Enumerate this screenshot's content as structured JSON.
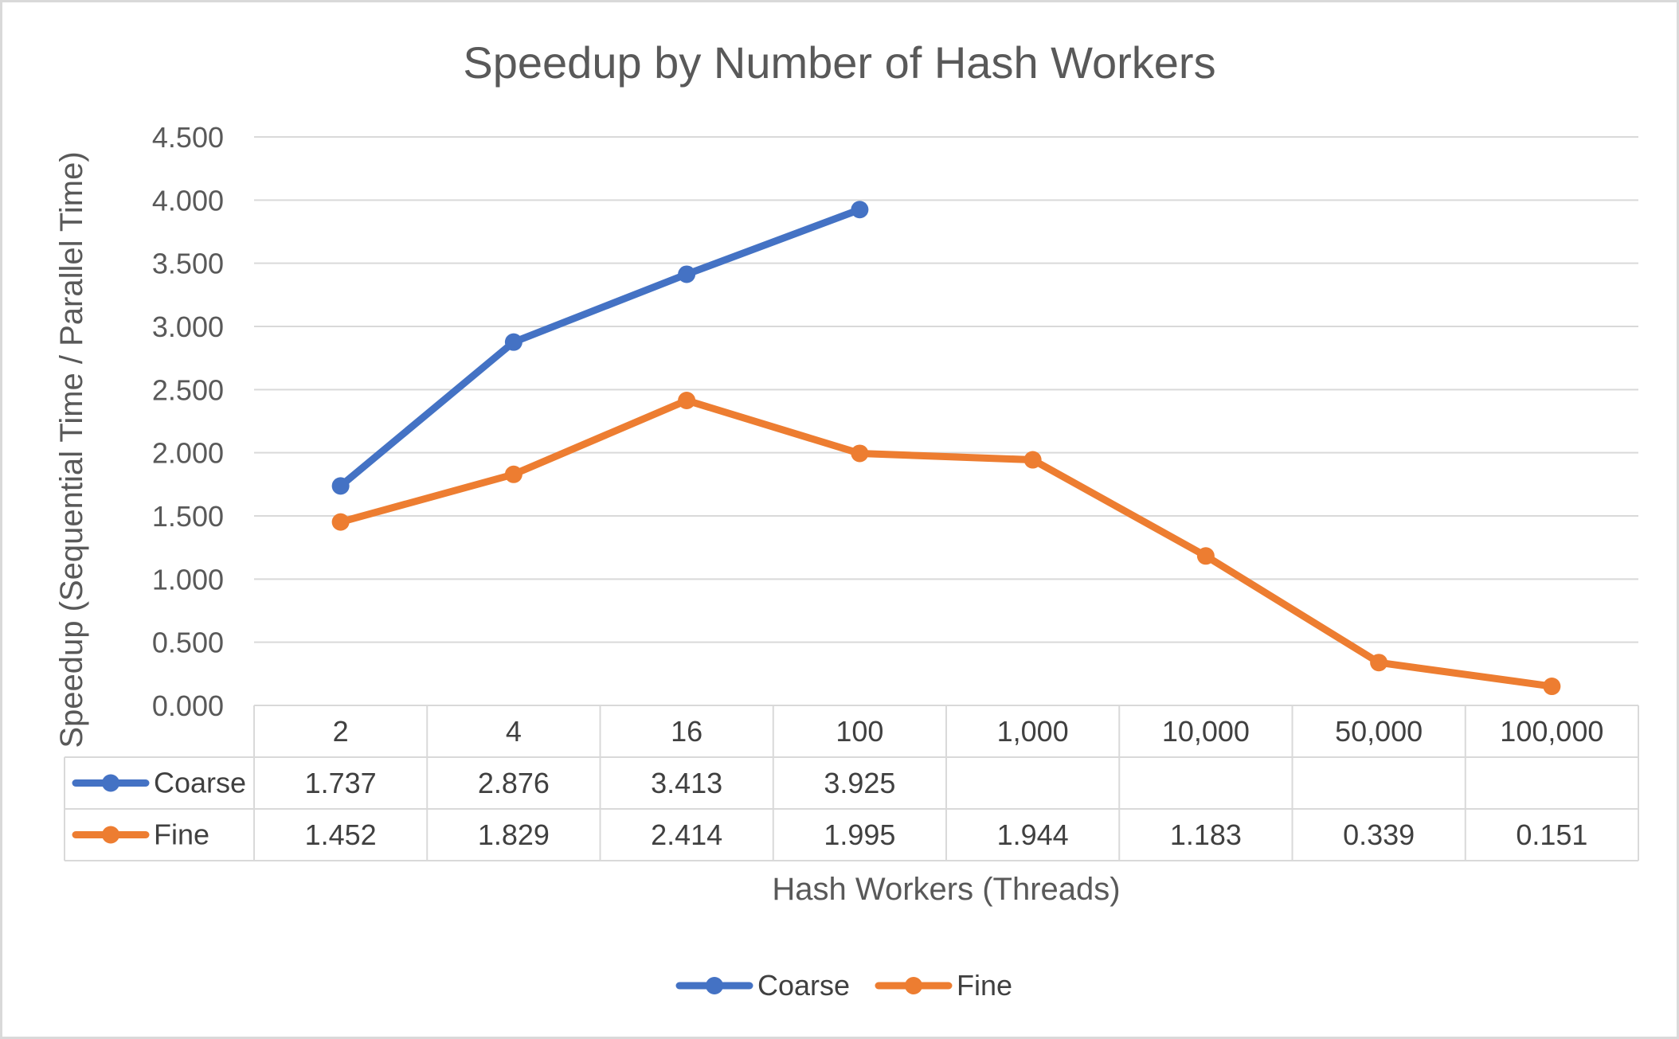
{
  "chart_data": {
    "type": "line",
    "title": "Speedup by Number of Hash Workers",
    "xlabel": "Hash Workers (Threads)",
    "ylabel": "Speedup (Sequential Time / Parallel Time)",
    "ylim": [
      0,
      4.5
    ],
    "yticks": [
      "0.000",
      "0.500",
      "1.000",
      "1.500",
      "2.000",
      "2.500",
      "3.000",
      "3.500",
      "4.000",
      "4.500"
    ],
    "categories": [
      "2",
      "4",
      "16",
      "100",
      "1,000",
      "10,000",
      "50,000",
      "100,000"
    ],
    "series": [
      {
        "name": "Coarse",
        "color": "#4472c4",
        "values": [
          1.737,
          2.876,
          3.413,
          3.925,
          null,
          null,
          null,
          null
        ],
        "labels": [
          "1.737",
          "2.876",
          "3.413",
          "3.925",
          "",
          "",
          "",
          ""
        ]
      },
      {
        "name": "Fine",
        "color": "#ed7d31",
        "values": [
          1.452,
          1.829,
          2.414,
          1.995,
          1.944,
          1.183,
          0.339,
          0.151
        ],
        "labels": [
          "1.452",
          "1.829",
          "2.414",
          "1.995",
          "1.944",
          "1.183",
          "0.339",
          "0.151"
        ]
      }
    ],
    "grid": true,
    "data_table": true,
    "legend_position": "bottom"
  }
}
